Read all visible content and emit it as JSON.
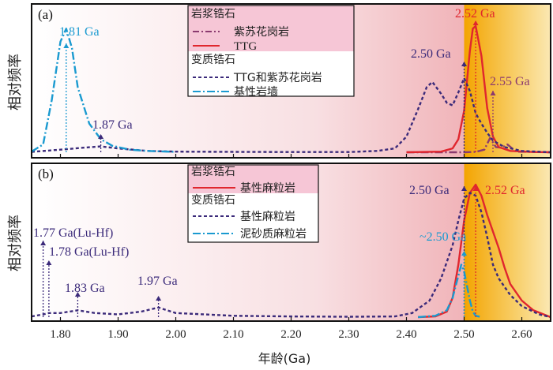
{
  "ylabel": "相对频率",
  "xlabel": "年龄(Ga)",
  "colors": {
    "magmatic_purple": "#8b3a6f",
    "ttg_red": "#e0262e",
    "dark_purple": "#3b2a7a",
    "dyke_blue": "#1a9ad0",
    "panel_bg_left": "#ffffff",
    "panel_bg_right": "#ec9aa0",
    "highlight": "#f5a800"
  },
  "chart_data": [
    {
      "type": "line",
      "panel_label": "(a)",
      "xlim": [
        1.75,
        2.65
      ],
      "xticks": [
        "1.80",
        "1.90",
        "2.00",
        "2.10",
        "2.20",
        "2.30",
        "2.40",
        "2.50",
        "2.60"
      ],
      "highlight_range": [
        2.5,
        2.65
      ],
      "legend": {
        "group1_title": "岩浆锆石",
        "group1_items": [
          {
            "label": "紫苏花岗岩",
            "style": "dash-dot",
            "color": "#8b3a6f"
          },
          {
            "label": "TTG",
            "style": "solid",
            "color": "#e0262e"
          }
        ],
        "group2_title": "变质锆石",
        "group2_items": [
          {
            "label": "TTG和紫苏花岗岩",
            "style": "dashed",
            "color": "#3b2a7a"
          },
          {
            "label": "基性岩墙",
            "style": "dash-dot",
            "color": "#1a9ad0"
          }
        ]
      },
      "series": [
        {
          "name": "紫苏花岗岩",
          "kind": "magmatic",
          "style": "dash-dot",
          "color": "#8b3a6f",
          "x": [
            2.4,
            2.5,
            2.52,
            2.535,
            2.545,
            2.555,
            2.565,
            2.575,
            2.59,
            2.65
          ],
          "y": [
            0,
            0,
            0.3,
            2,
            11,
            4,
            3.5,
            6,
            0.5,
            0
          ]
        },
        {
          "name": "TTG",
          "kind": "magmatic",
          "style": "solid",
          "color": "#e0262e",
          "x": [
            2.4,
            2.46,
            2.48,
            2.49,
            2.5,
            2.51,
            2.515,
            2.52,
            2.53,
            2.54,
            2.55,
            2.56,
            2.58,
            2.62,
            2.65
          ],
          "y": [
            0,
            0.5,
            3,
            10,
            32,
            78,
            95,
            97,
            74,
            34,
            12,
            4,
            1,
            0.2,
            0
          ]
        },
        {
          "name": "TTG和紫苏花岗岩",
          "kind": "metamorphic",
          "style": "dashed",
          "color": "#3b2a7a",
          "x": [
            1.75,
            1.8,
            1.84,
            1.87,
            1.9,
            1.95,
            2.0,
            2.1,
            2.2,
            2.3,
            2.35,
            2.38,
            2.4,
            2.42,
            2.435,
            2.445,
            2.46,
            2.47,
            2.48,
            2.49,
            2.5,
            2.51,
            2.52,
            2.53,
            2.54,
            2.55,
            2.57,
            2.6,
            2.65
          ],
          "y": [
            0.3,
            2,
            3.5,
            4.5,
            3,
            1,
            0.5,
            0.3,
            0.2,
            0.2,
            1,
            3,
            12,
            33,
            50,
            54,
            45,
            38,
            36,
            46,
            57,
            47,
            30,
            22,
            15,
            9,
            4,
            1,
            0
          ]
        },
        {
          "name": "基性岩墙",
          "kind": "metamorphic",
          "style": "dash-dot",
          "color": "#1a9ad0",
          "x": [
            1.75,
            1.77,
            1.785,
            1.8,
            1.81,
            1.82,
            1.83,
            1.85,
            1.87,
            1.89,
            1.92,
            1.95,
            2.0
          ],
          "y": [
            0.5,
            6,
            40,
            85,
            95,
            80,
            50,
            22,
            10,
            5,
            2,
            1,
            0.3
          ]
        }
      ],
      "annotations": [
        {
          "text": "1.81 Ga",
          "x": 1.81,
          "color": "#1a9ad0"
        },
        {
          "text": "1.87 Ga",
          "x": 1.87,
          "color": "#3b2a7a"
        },
        {
          "text": "2.50 Ga",
          "x": 2.5,
          "color": "#3b2a7a"
        },
        {
          "text": "2.52 Ga",
          "x": 2.52,
          "color": "#e0262e"
        },
        {
          "text": "2.55 Ga",
          "x": 2.55,
          "color": "#8b3a6f"
        }
      ]
    },
    {
      "type": "line",
      "panel_label": "(b)",
      "xlim": [
        1.75,
        2.65
      ],
      "xticks": [
        "1.80",
        "1.90",
        "2.00",
        "2.10",
        "2.20",
        "2.30",
        "2.40",
        "2.50",
        "2.60"
      ],
      "highlight_range": [
        2.5,
        2.65
      ],
      "legend": {
        "group1_title": "岩浆锆石",
        "group1_items": [
          {
            "label": "基性麻粒岩",
            "style": "solid",
            "color": "#e0262e"
          }
        ],
        "group2_title": "变质锆石",
        "group2_items": [
          {
            "label": "基性麻粒岩",
            "style": "dashed",
            "color": "#3b2a7a"
          },
          {
            "label": "泥砂质麻粒岩",
            "style": "dash-dot",
            "color": "#1a9ad0"
          }
        ]
      },
      "series": [
        {
          "name": "基性麻粒岩 (岩浆)",
          "kind": "magmatic",
          "style": "solid",
          "color": "#e0262e",
          "x": [
            2.42,
            2.45,
            2.47,
            2.48,
            2.49,
            2.5,
            2.51,
            2.52,
            2.53,
            2.54,
            2.55,
            2.56,
            2.57,
            2.58,
            2.6,
            2.62,
            2.65
          ],
          "y": [
            0,
            0.5,
            4,
            14,
            38,
            70,
            90,
            96,
            88,
            74,
            62,
            50,
            36,
            24,
            12,
            5,
            0
          ]
        },
        {
          "name": "基性麻粒岩 (变质)",
          "kind": "metamorphic",
          "style": "dashed",
          "color": "#3b2a7a",
          "x": [
            1.75,
            1.77,
            1.78,
            1.8,
            1.83,
            1.86,
            1.9,
            1.94,
            1.97,
            2.0,
            2.05,
            2.1,
            2.2,
            2.3,
            2.38,
            2.41,
            2.44,
            2.46,
            2.48,
            2.49,
            2.5,
            2.51,
            2.52,
            2.53,
            2.54,
            2.55,
            2.56,
            2.58,
            2.6,
            2.63,
            2.65
          ],
          "y": [
            0.5,
            2,
            3,
            3,
            5,
            3,
            2,
            4,
            7,
            3,
            2,
            1,
            0.5,
            0.3,
            0.5,
            3,
            12,
            28,
            52,
            70,
            86,
            90,
            88,
            76,
            58,
            38,
            28,
            16,
            8,
            2,
            0
          ]
        },
        {
          "name": "泥砂质麻粒岩",
          "kind": "metamorphic",
          "style": "dash-dot",
          "color": "#1a9ad0",
          "x": [
            2.42,
            2.45,
            2.47,
            2.48,
            2.49,
            2.495,
            2.5,
            2.51,
            2.515,
            2.52,
            2.53
          ],
          "y": [
            0,
            1,
            5,
            14,
            30,
            38,
            33,
            12,
            4,
            1,
            0
          ]
        }
      ],
      "annotations": [
        {
          "text": "1.77 Ga(Lu-Hf)",
          "x": 1.77,
          "color": "#3b2a7a"
        },
        {
          "text": "1.78 Ga(Lu-Hf)",
          "x": 1.78,
          "color": "#3b2a7a"
        },
        {
          "text": "1.83 Ga",
          "x": 1.83,
          "color": "#3b2a7a"
        },
        {
          "text": "1.97 Ga",
          "x": 1.97,
          "color": "#3b2a7a"
        },
        {
          "text": "2.50 Ga",
          "x": 2.5,
          "color": "#3b2a7a"
        },
        {
          "text": "2.52 Ga",
          "x": 2.52,
          "color": "#e0262e"
        },
        {
          "text": "~2.50 Ga",
          "x": 2.5,
          "color": "#1a9ad0"
        }
      ]
    }
  ]
}
